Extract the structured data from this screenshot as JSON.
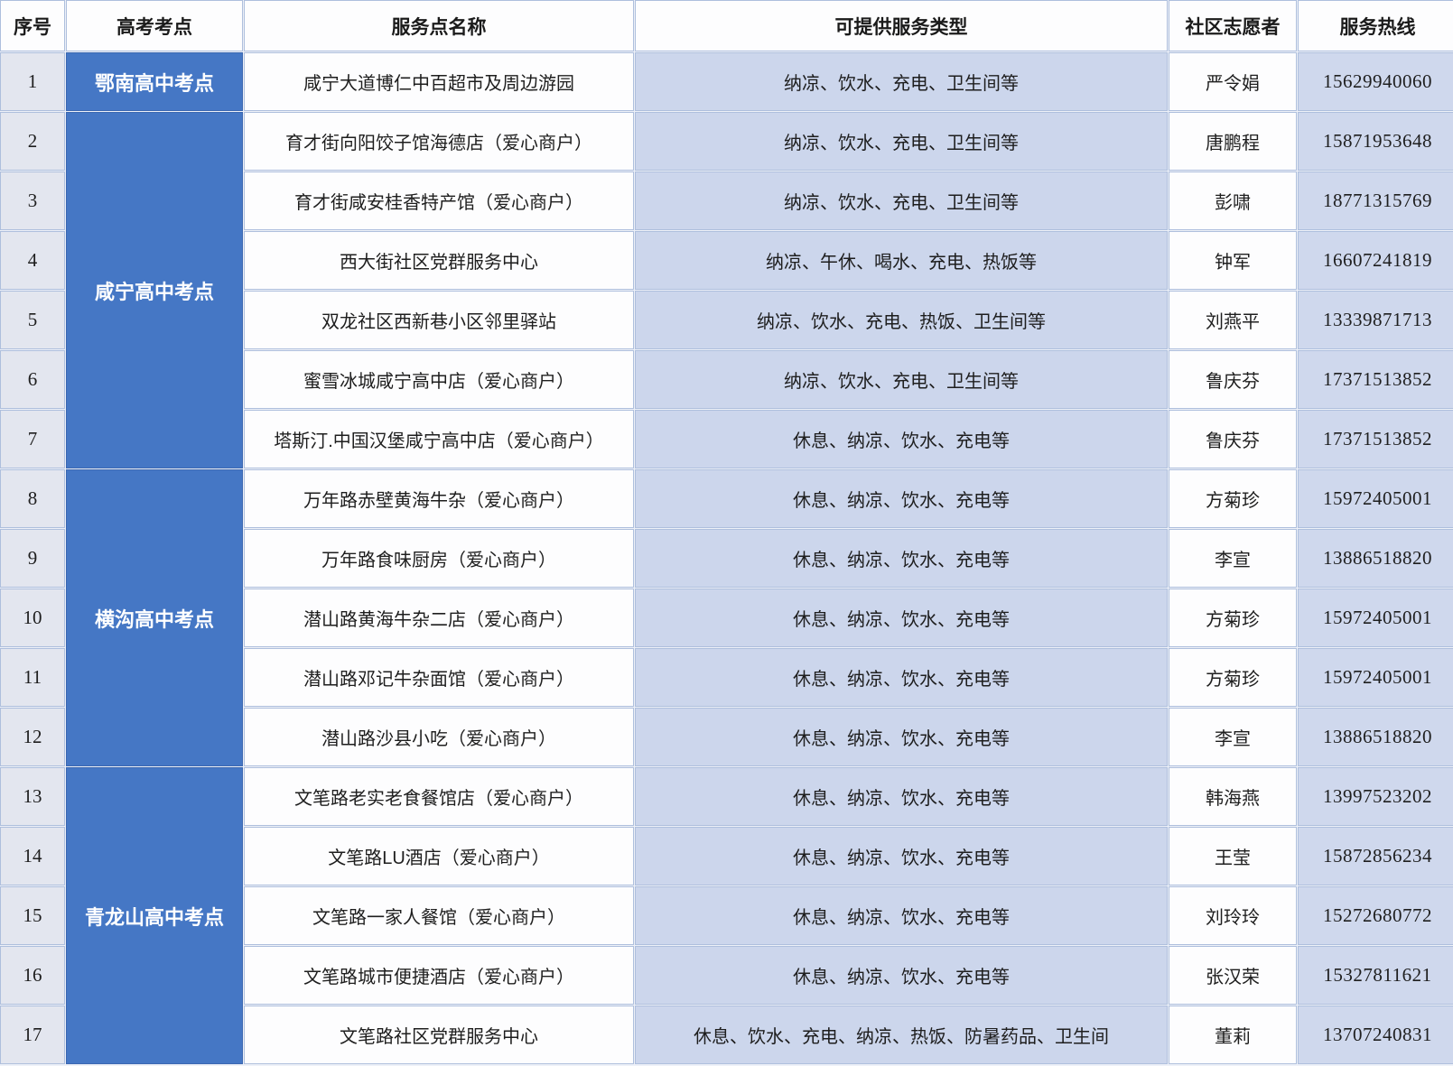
{
  "table": {
    "columns": [
      {
        "key": "index",
        "label": "序号"
      },
      {
        "key": "site",
        "label": "高考考点"
      },
      {
        "key": "name",
        "label": "服务点名称"
      },
      {
        "key": "services",
        "label": "可提供服务类型"
      },
      {
        "key": "volunteer",
        "label": "社区志愿者"
      },
      {
        "key": "hotline",
        "label": "服务热线"
      }
    ],
    "site_groups": [
      {
        "label": "鄂南高中考点",
        "start": 0,
        "span": 1
      },
      {
        "label": "咸宁高中考点",
        "start": 1,
        "span": 6
      },
      {
        "label": "横沟高中考点",
        "start": 7,
        "span": 5
      },
      {
        "label": "青龙山高中考点",
        "start": 12,
        "span": 5
      }
    ],
    "rows": [
      {
        "index": "1",
        "name": "咸宁大道博仁中百超市及周边游园",
        "services": "纳凉、饮水、充电、卫生间等",
        "volunteer": "严令娟",
        "hotline": "15629940060"
      },
      {
        "index": "2",
        "name": "育才街向阳饺子馆海德店（爱心商户）",
        "services": "纳凉、饮水、充电、卫生间等",
        "volunteer": "唐鹏程",
        "hotline": "15871953648"
      },
      {
        "index": "3",
        "name": "育才街咸安桂香特产馆（爱心商户）",
        "services": "纳凉、饮水、充电、卫生间等",
        "volunteer": "彭啸",
        "hotline": "18771315769"
      },
      {
        "index": "4",
        "name": "西大街社区党群服务中心",
        "services": "纳凉、午休、喝水、充电、热饭等",
        "volunteer": "钟军",
        "hotline": "16607241819"
      },
      {
        "index": "5",
        "name": "双龙社区西新巷小区邻里驿站",
        "services": "纳凉、饮水、充电、热饭、卫生间等",
        "volunteer": "刘燕平",
        "hotline": "13339871713"
      },
      {
        "index": "6",
        "name": "蜜雪冰城咸宁高中店（爱心商户）",
        "services": "纳凉、饮水、充电、卫生间等",
        "volunteer": "鲁庆芬",
        "hotline": "17371513852"
      },
      {
        "index": "7",
        "name": "塔斯汀.中国汉堡咸宁高中店（爱心商户）",
        "services": "休息、纳凉、饮水、充电等",
        "volunteer": "鲁庆芬",
        "hotline": "17371513852"
      },
      {
        "index": "8",
        "name": "万年路赤壁黄海牛杂（爱心商户）",
        "services": "休息、纳凉、饮水、充电等",
        "volunteer": "方菊珍",
        "hotline": "15972405001"
      },
      {
        "index": "9",
        "name": "万年路食味厨房（爱心商户）",
        "services": "休息、纳凉、饮水、充电等",
        "volunteer": "李宣",
        "hotline": "13886518820"
      },
      {
        "index": "10",
        "name": "潜山路黄海牛杂二店（爱心商户）",
        "services": "休息、纳凉、饮水、充电等",
        "volunteer": "方菊珍",
        "hotline": "15972405001"
      },
      {
        "index": "11",
        "name": "潜山路邓记牛杂面馆（爱心商户）",
        "services": "休息、纳凉、饮水、充电等",
        "volunteer": "方菊珍",
        "hotline": "15972405001"
      },
      {
        "index": "12",
        "name": "潜山路沙县小吃（爱心商户）",
        "services": "休息、纳凉、饮水、充电等",
        "volunteer": "李宣",
        "hotline": "13886518820"
      },
      {
        "index": "13",
        "name": "文笔路老实老食餐馆店（爱心商户）",
        "services": "休息、纳凉、饮水、充电等",
        "volunteer": "韩海燕",
        "hotline": "13997523202"
      },
      {
        "index": "14",
        "name": "文笔路LU酒店（爱心商户）",
        "services": "休息、纳凉、饮水、充电等",
        "volunteer": "王莹",
        "hotline": "15872856234"
      },
      {
        "index": "15",
        "name": "文笔路一家人餐馆（爱心商户）",
        "services": "休息、纳凉、饮水、充电等",
        "volunteer": "刘玲玲",
        "hotline": "15272680772"
      },
      {
        "index": "16",
        "name": "文笔路城市便捷酒店（爱心商户）",
        "services": "休息、纳凉、饮水、充电等",
        "volunteer": "张汉荣",
        "hotline": "15327811621"
      },
      {
        "index": "17",
        "name": "文笔路社区党群服务中心",
        "services": "休息、饮水、充电、纳凉、热饭、防暑药品、卫生间",
        "volunteer": "董莉",
        "hotline": "13707240831"
      }
    ]
  },
  "colors": {
    "site_cell_blue": "#4577c5",
    "services_cell_periwinkle": "#ccd6ec",
    "hotline_cell_periwinkle": "#cfd8ed",
    "index_cell_gray": "#e3e6ef",
    "grid_line": "#aebfdd"
  }
}
